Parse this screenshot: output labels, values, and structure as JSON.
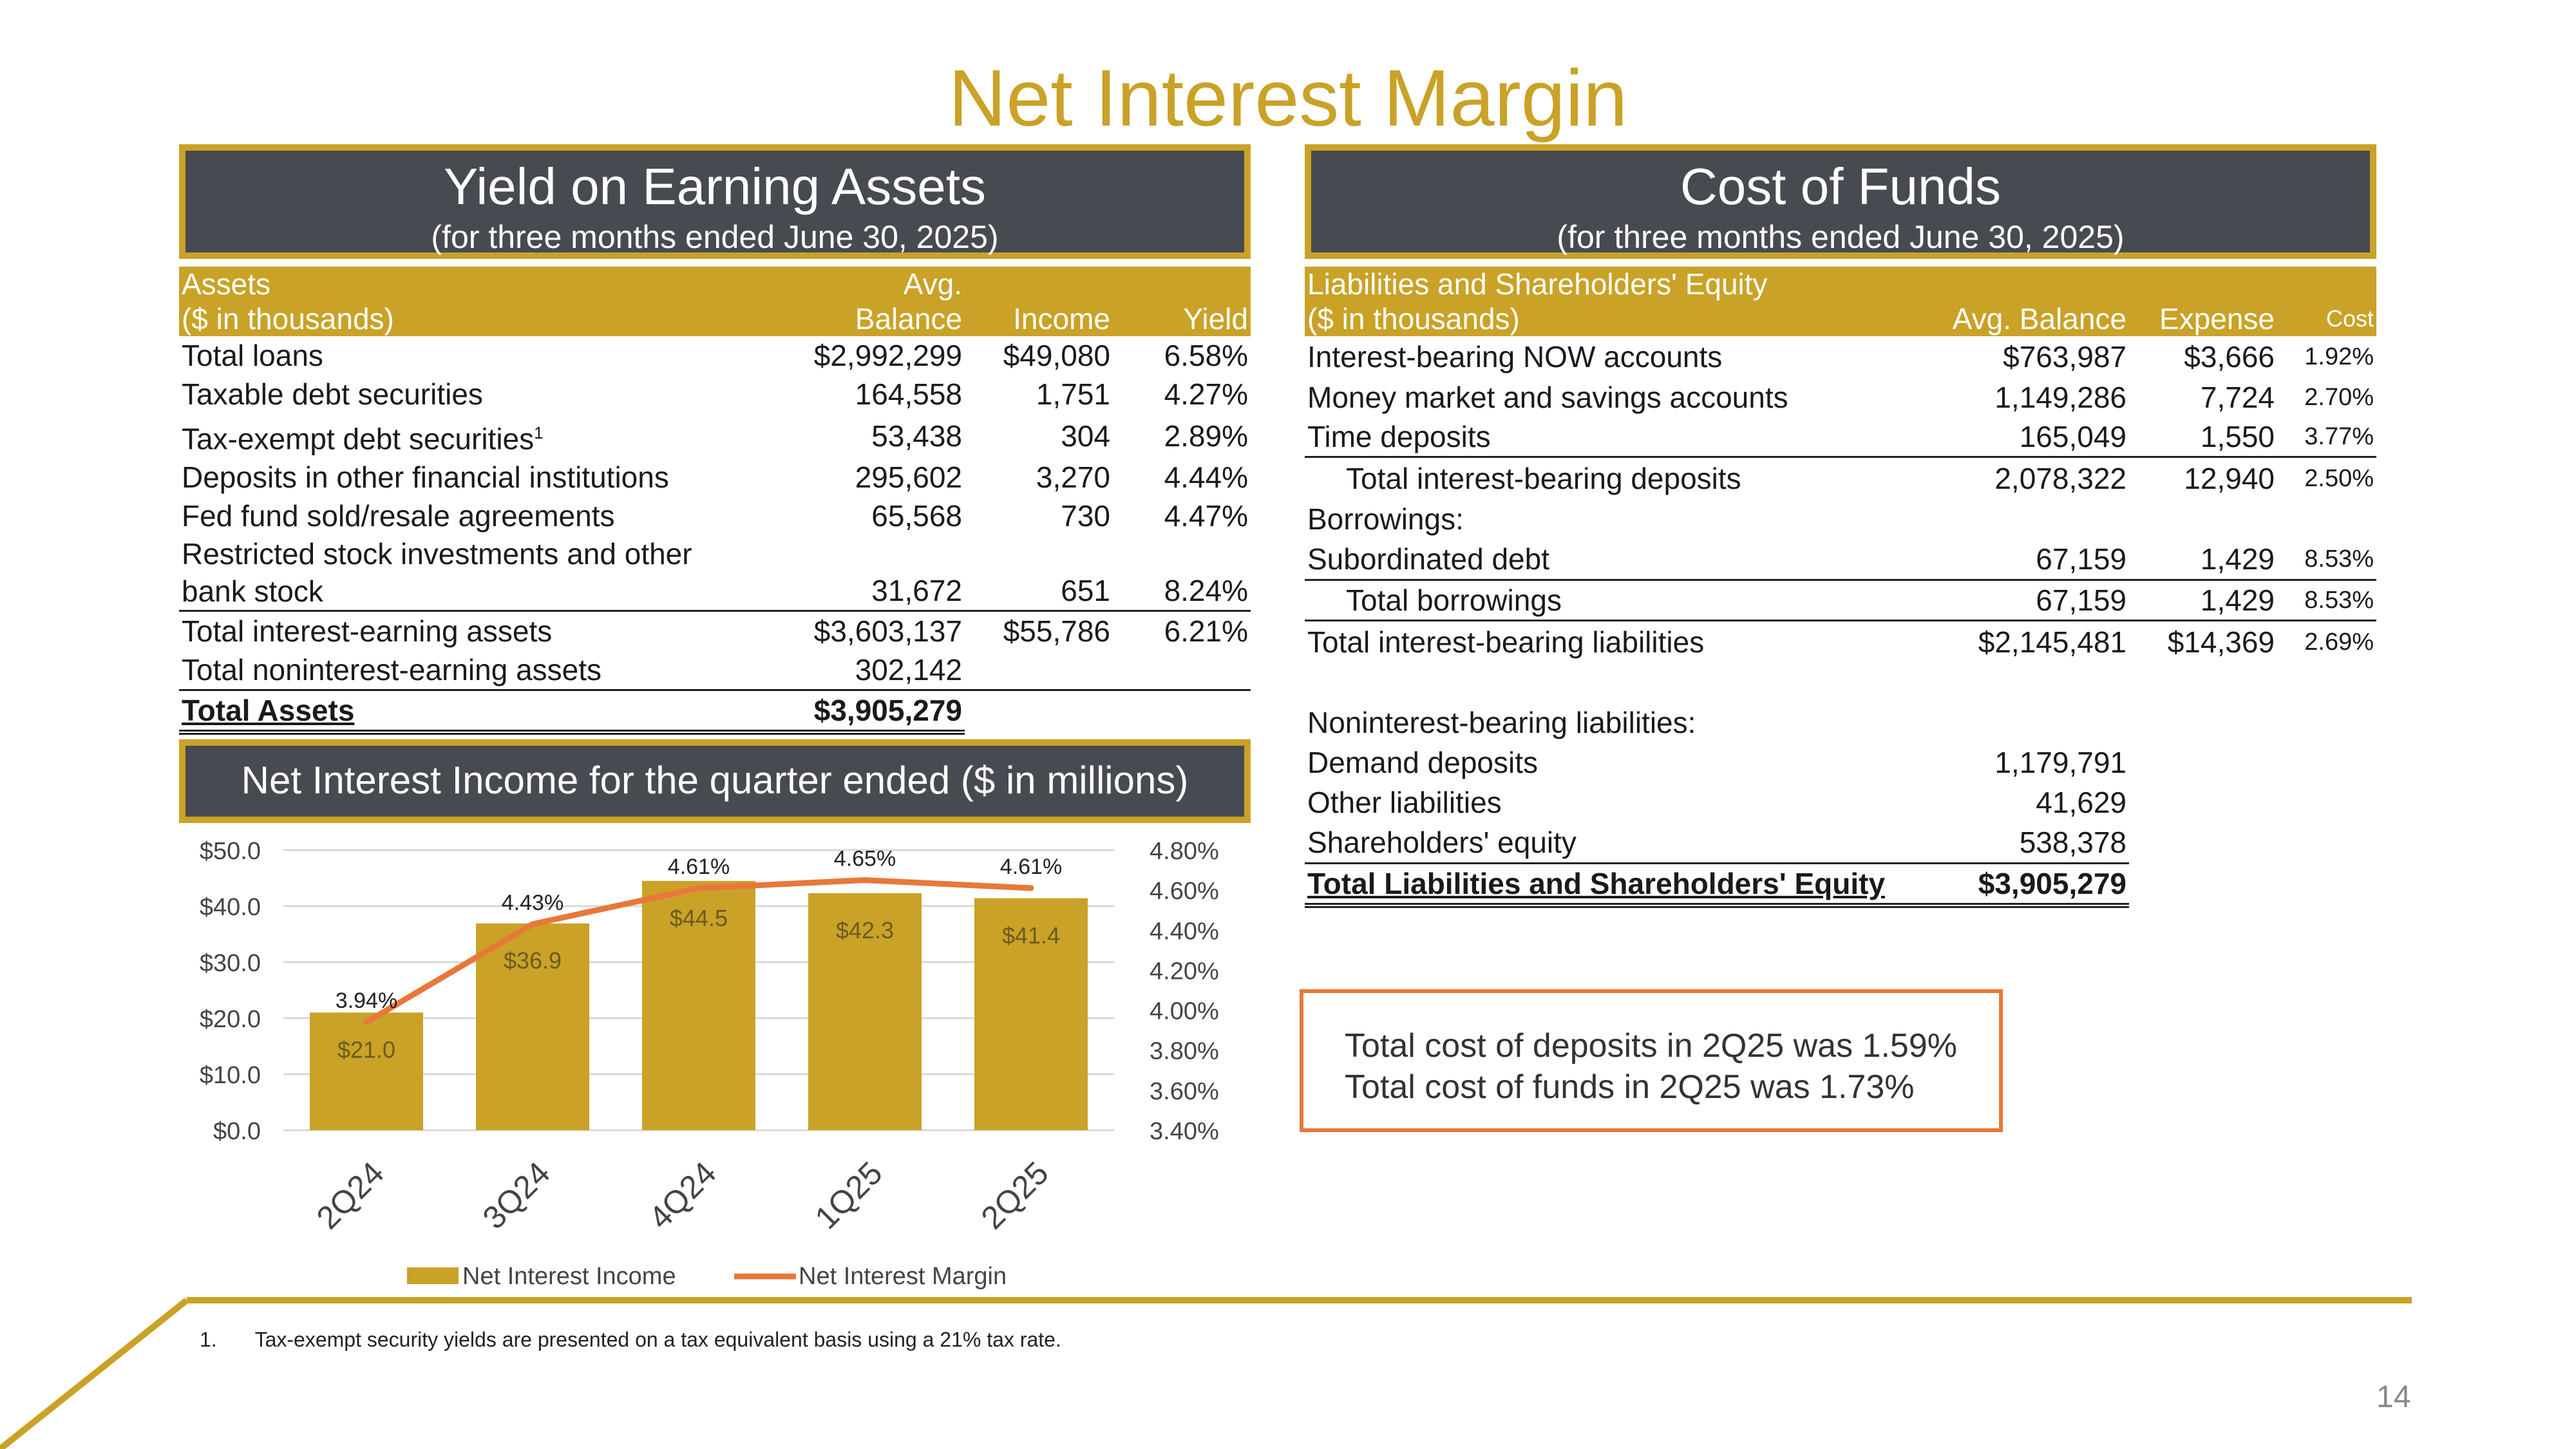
{
  "title": "Net Interest Margin",
  "yield_panel": {
    "title": "Yield on Earning Assets",
    "subtitle": "(for three months ended June 30, 2025)",
    "headers": {
      "label_line1": "Assets",
      "label_line2": "($ in thousands)",
      "balance_line1": "Avg.",
      "balance_line2": "Balance",
      "income": "Income",
      "yield": "Yield"
    },
    "rows": [
      {
        "label": "Total loans",
        "balance": "$2,992,299",
        "income": "$49,080",
        "yield": "6.58%"
      },
      {
        "label": "Taxable debt securities",
        "balance": "164,558",
        "income": "1,751",
        "yield": "4.27%"
      },
      {
        "label": "Tax-exempt debt securities",
        "sup": "1",
        "balance": "53,438",
        "income": "304",
        "yield": "2.89%"
      },
      {
        "label": "Deposits in other financial institutions",
        "balance": "295,602",
        "income": "3,270",
        "yield": "4.44%"
      },
      {
        "label": "Fed fund sold/resale agreements",
        "balance": "65,568",
        "income": "730",
        "yield": "4.47%"
      },
      {
        "label": "Restricted stock investments and other",
        "label2": "bank stock",
        "balance": "31,672",
        "income": "651",
        "yield": "8.24%"
      },
      {
        "label": "Total interest-earning assets",
        "balance": "$3,603,137",
        "income": "$55,786",
        "yield": "6.21%"
      },
      {
        "label": "Total noninterest-earning assets",
        "balance": "302,142",
        "income": "",
        "yield": ""
      },
      {
        "label": "Total  Assets",
        "balance": "$3,905,279",
        "income": "",
        "yield": ""
      }
    ]
  },
  "cost_panel": {
    "title": "Cost of Funds",
    "subtitle": "(for three months ended June 30, 2025)",
    "headers": {
      "label_line1": "Liabilities and Shareholders' Equity",
      "label_line2": "($ in thousands)",
      "balance": "Avg. Balance",
      "expense": "Expense",
      "cost": "Cost"
    },
    "rows": [
      {
        "label": "Interest-bearing NOW accounts",
        "balance": "$763,987",
        "expense": "$3,666",
        "cost": "1.92%"
      },
      {
        "label": "Money market and savings accounts",
        "balance": "1,149,286",
        "expense": "7,724",
        "cost": "2.70%"
      },
      {
        "label": "Time deposits",
        "balance": "165,049",
        "expense": "1,550",
        "cost": "3.77%"
      },
      {
        "label": "Total interest-bearing deposits",
        "balance": "2,078,322",
        "expense": "12,940",
        "cost": "2.50%"
      },
      {
        "label": "Borrowings:",
        "balance": "",
        "expense": "",
        "cost": ""
      },
      {
        "label": "Subordinated debt",
        "balance": "67,159",
        "expense": "1,429",
        "cost": "8.53%"
      },
      {
        "label": "Total borrowings",
        "balance": "67,159",
        "expense": "1,429",
        "cost": "8.53%"
      },
      {
        "label": "Total interest-bearing liabilities",
        "balance": "$2,145,481",
        "expense": "$14,369",
        "cost": "2.69%"
      },
      {
        "label": "Noninterest-bearing liabilities:",
        "balance": "",
        "expense": "",
        "cost": ""
      },
      {
        "label": "Demand deposits",
        "balance": "1,179,791",
        "expense": "",
        "cost": ""
      },
      {
        "label": "Other liabilities",
        "balance": "41,629",
        "expense": "",
        "cost": ""
      },
      {
        "label": "Shareholders' equity",
        "balance": "538,378",
        "expense": "",
        "cost": ""
      },
      {
        "label": "Total Liabilities and Shareholders' Equity",
        "balance": "$3,905,279",
        "expense": "",
        "cost": ""
      }
    ]
  },
  "nii_panel": {
    "title": "Net Interest Income for the quarter ended ($ in millions)"
  },
  "callout": {
    "line1": "Total cost of deposits in 2Q25 was 1.59%",
    "line2": "Total cost of funds in 2Q25 was 1.73%"
  },
  "footnote": {
    "number": "1.",
    "text": "Tax-exempt security yields are presented on a tax equivalent basis using a 21% tax rate."
  },
  "page_number": "14",
  "colors": {
    "gold": "#c9a227",
    "panel_bg": "#484a52",
    "line_orange": "#e8783a"
  },
  "chart_data": {
    "type": "bar",
    "categories": [
      "2Q24",
      "3Q24",
      "4Q24",
      "1Q25",
      "2Q25"
    ],
    "series": [
      {
        "name": "Net Interest Income",
        "type": "bar",
        "axis": "left",
        "values": [
          21.0,
          36.9,
          44.5,
          42.3,
          41.4
        ],
        "labels": [
          "$21.0",
          "$36.9",
          "$44.5",
          "$42.3",
          "$41.4"
        ]
      },
      {
        "name": "Net Interest Margin",
        "type": "line",
        "axis": "right",
        "values": [
          3.94,
          4.43,
          4.61,
          4.65,
          4.61
        ],
        "labels": [
          "3.94%",
          "4.43%",
          "4.61%",
          "4.65%",
          "4.61%"
        ]
      }
    ],
    "y_left": {
      "min": 0,
      "max": 50,
      "ticks": [
        "$0.0",
        "$10.0",
        "$20.0",
        "$30.0",
        "$40.0",
        "$50.0"
      ]
    },
    "y_right": {
      "min": 3.4,
      "max": 4.8,
      "ticks": [
        "3.40%",
        "3.60%",
        "3.80%",
        "4.00%",
        "4.20%",
        "4.40%",
        "4.60%",
        "4.80%"
      ]
    },
    "grid": true,
    "legend": "bottom"
  }
}
